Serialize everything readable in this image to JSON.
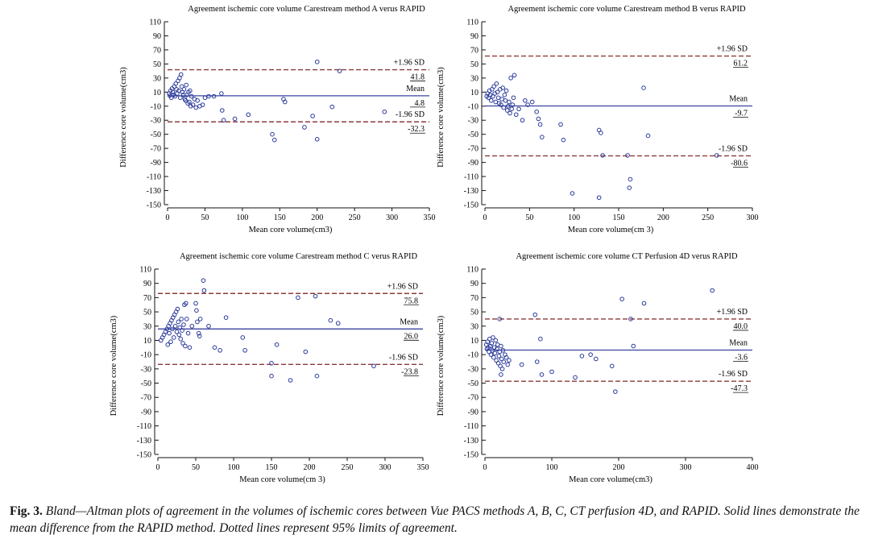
{
  "caption": {
    "label": "Fig. 3.",
    "text": "Bland—Altman plots of agreement in the volumes of ischemic cores between Vue PACS methods A, B, C, CT perfusion 4D, and RAPID. Solid lines demonstrate the mean difference from the RAPID method. Dotted lines represent 95% limits of agreement."
  },
  "colors": {
    "mean_line": "#3a44a0",
    "limit_line": "#8c3b3b",
    "points": "#2a3a9a",
    "axis": "#111111"
  },
  "chart_data": [
    {
      "type": "scatter",
      "title": "Agreement ischemic core volume Carestream method A verus RAPID",
      "xlabel": "Mean core volume(cm3)",
      "ylabel": "Difference core volume(cm3)",
      "xlim": [
        0,
        350
      ],
      "ylim": [
        -150,
        110
      ],
      "xticks": [
        0,
        50,
        100,
        150,
        200,
        250,
        300,
        350
      ],
      "yticks": [
        110,
        90,
        70,
        50,
        30,
        10,
        -10,
        -30,
        -50,
        -70,
        -90,
        -110,
        -130,
        -150
      ],
      "mean": 4.8,
      "upper_limit": 41.8,
      "lower_limit": -32.3,
      "labels": {
        "upper": "+1.96 SD",
        "mean": "Mean",
        "lower": "-1.96 SD",
        "upper_value": "41.8",
        "mean_value": "4.8",
        "lower_value": "-32.3"
      },
      "points": [
        [
          2,
          8
        ],
        [
          3,
          5
        ],
        [
          4,
          12
        ],
        [
          5,
          2
        ],
        [
          6,
          15
        ],
        [
          7,
          10
        ],
        [
          8,
          6
        ],
        [
          9,
          18
        ],
        [
          10,
          4
        ],
        [
          11,
          22
        ],
        [
          12,
          14
        ],
        [
          13,
          8
        ],
        [
          14,
          26
        ],
        [
          15,
          12
        ],
        [
          16,
          30
        ],
        [
          17,
          2
        ],
        [
          18,
          35
        ],
        [
          19,
          18
        ],
        [
          20,
          10
        ],
        [
          21,
          6
        ],
        [
          22,
          14
        ],
        [
          23,
          0
        ],
        [
          24,
          -2
        ],
        [
          25,
          20
        ],
        [
          26,
          6
        ],
        [
          27,
          -6
        ],
        [
          28,
          10
        ],
        [
          29,
          -4
        ],
        [
          30,
          12
        ],
        [
          31,
          -10
        ],
        [
          32,
          4
        ],
        [
          34,
          -8
        ],
        [
          36,
          0
        ],
        [
          38,
          -12
        ],
        [
          40,
          -2
        ],
        [
          43,
          -10
        ],
        [
          47,
          -8
        ],
        [
          50,
          2
        ],
        [
          55,
          4
        ],
        [
          62,
          4
        ],
        [
          72,
          8
        ],
        [
          73,
          -16
        ],
        [
          75,
          -30
        ],
        [
          90,
          -28
        ],
        [
          108,
          -22
        ],
        [
          140,
          -50
        ],
        [
          143,
          -58
        ],
        [
          155,
          0
        ],
        [
          157,
          -4
        ],
        [
          183,
          -40
        ],
        [
          200,
          53
        ],
        [
          200,
          -57
        ],
        [
          194,
          -24
        ],
        [
          230,
          40
        ],
        [
          220,
          -11
        ],
        [
          290,
          -18
        ]
      ]
    },
    {
      "type": "scatter",
      "title": "Agreement ischemic core volume Carestream method B verus RAPID",
      "xlabel": "Mean core volume(cm 3)",
      "ylabel": "Difference core volume(cm3)",
      "xlim": [
        0,
        300
      ],
      "ylim": [
        -150,
        110
      ],
      "xticks": [
        0,
        50,
        100,
        150,
        200,
        250,
        300
      ],
      "yticks": [
        110,
        90,
        70,
        50,
        30,
        10,
        -10,
        -30,
        -50,
        -70,
        -90,
        -110,
        -130,
        -150
      ],
      "mean": -9.7,
      "upper_limit": 61.2,
      "lower_limit": -80.6,
      "labels": {
        "upper": "+1.96 SD",
        "mean": "Mean",
        "lower": "-1.96 SD",
        "upper_value": "61.2",
        "mean_value": "-9.7",
        "lower_value": "-80.6"
      },
      "points": [
        [
          2,
          4
        ],
        [
          3,
          8
        ],
        [
          4,
          2
        ],
        [
          5,
          12
        ],
        [
          6,
          6
        ],
        [
          7,
          -2
        ],
        [
          8,
          14
        ],
        [
          9,
          4
        ],
        [
          10,
          18
        ],
        [
          11,
          8
        ],
        [
          12,
          -4
        ],
        [
          13,
          22
        ],
        [
          14,
          10
        ],
        [
          15,
          2
        ],
        [
          16,
          -6
        ],
        [
          17,
          14
        ],
        [
          18,
          -8
        ],
        [
          19,
          0
        ],
        [
          20,
          16
        ],
        [
          21,
          -12
        ],
        [
          22,
          6
        ],
        [
          23,
          -2
        ],
        [
          24,
          12
        ],
        [
          25,
          -16
        ],
        [
          26,
          -10
        ],
        [
          27,
          -4
        ],
        [
          28,
          -20
        ],
        [
          29,
          30
        ],
        [
          30,
          -14
        ],
        [
          31,
          -8
        ],
        [
          32,
          2
        ],
        [
          33,
          34
        ],
        [
          35,
          -22
        ],
        [
          38,
          -14
        ],
        [
          42,
          -30
        ],
        [
          45,
          -2
        ],
        [
          48,
          -8
        ],
        [
          53,
          -4
        ],
        [
          58,
          -18
        ],
        [
          60,
          -28
        ],
        [
          62,
          -36
        ],
        [
          64,
          -54
        ],
        [
          85,
          -36
        ],
        [
          88,
          -58
        ],
        [
          98,
          -134
        ],
        [
          128,
          -44
        ],
        [
          130,
          -48
        ],
        [
          132,
          -80
        ],
        [
          128,
          -140
        ],
        [
          160,
          -80
        ],
        [
          163,
          -114
        ],
        [
          162,
          -126
        ],
        [
          178,
          16
        ],
        [
          183,
          -52
        ],
        [
          260,
          -80
        ]
      ]
    },
    {
      "type": "scatter",
      "title": "Agreement ischemic core volume Carestream method C verus RAPID",
      "xlabel": "Mean core volume(cm 3)",
      "ylabel": "Difference core volume(cm3)",
      "xlim": [
        0,
        350
      ],
      "ylim": [
        -150,
        110
      ],
      "xticks": [
        0,
        50,
        100,
        150,
        200,
        250,
        300,
        350
      ],
      "yticks": [
        110,
        90,
        70,
        50,
        30,
        10,
        -10,
        -30,
        -50,
        -70,
        -90,
        -110,
        -130,
        -150
      ],
      "mean": 26.0,
      "upper_limit": 75.8,
      "lower_limit": -23.8,
      "labels": {
        "upper": "+1.96 SD",
        "mean": "Mean",
        "lower": "-1.96 SD",
        "upper_value": "75.8",
        "mean_value": "26.0",
        "lower_value": "-23.8"
      },
      "points": [
        [
          4,
          10
        ],
        [
          6,
          14
        ],
        [
          8,
          18
        ],
        [
          10,
          22
        ],
        [
          12,
          26
        ],
        [
          13,
          4
        ],
        [
          14,
          30
        ],
        [
          15,
          20
        ],
        [
          16,
          34
        ],
        [
          17,
          8
        ],
        [
          18,
          38
        ],
        [
          19,
          26
        ],
        [
          20,
          42
        ],
        [
          21,
          14
        ],
        [
          22,
          46
        ],
        [
          23,
          30
        ],
        [
          24,
          50
        ],
        [
          25,
          22
        ],
        [
          26,
          54
        ],
        [
          27,
          36
        ],
        [
          28,
          18
        ],
        [
          29,
          28
        ],
        [
          30,
          12
        ],
        [
          31,
          40
        ],
        [
          32,
          24
        ],
        [
          33,
          6
        ],
        [
          34,
          32
        ],
        [
          35,
          60
        ],
        [
          36,
          2
        ],
        [
          37,
          62
        ],
        [
          38,
          40
        ],
        [
          40,
          20
        ],
        [
          42,
          0
        ],
        [
          45,
          30
        ],
        [
          50,
          62
        ],
        [
          51,
          52
        ],
        [
          52,
          36
        ],
        [
          54,
          20
        ],
        [
          55,
          16
        ],
        [
          56,
          40
        ],
        [
          60,
          94
        ],
        [
          61,
          80
        ],
        [
          67,
          30
        ],
        [
          75,
          0
        ],
        [
          82,
          -4
        ],
        [
          90,
          42
        ],
        [
          112,
          14
        ],
        [
          115,
          -4
        ],
        [
          150,
          -40
        ],
        [
          157,
          4
        ],
        [
          150,
          -22
        ],
        [
          175,
          -46
        ],
        [
          185,
          70
        ],
        [
          195,
          -6
        ],
        [
          208,
          72
        ],
        [
          210,
          -40
        ],
        [
          228,
          38
        ],
        [
          238,
          34
        ],
        [
          285,
          -26
        ]
      ]
    },
    {
      "type": "scatter",
      "title": "Agreement ischemic core volume CT Perfusion 4D verus RAPID",
      "xlabel": "Mean core volume(cm3)",
      "ylabel": "Difference core volume(cm3)",
      "xlim": [
        0,
        400
      ],
      "ylim": [
        -150,
        110
      ],
      "xticks": [
        0,
        100,
        200,
        300,
        400
      ],
      "yticks": [
        110,
        90,
        70,
        50,
        30,
        10,
        -10,
        -30,
        -50,
        -70,
        -90,
        -110,
        -130,
        -150
      ],
      "mean": -3.6,
      "upper_limit": 40.0,
      "lower_limit": -47.3,
      "labels": {
        "upper": "+1.96 SD",
        "mean": "Mean",
        "lower": "-1.96 SD",
        "upper_value": "40.0",
        "mean_value": "-3.6",
        "lower_value": "-47.3"
      },
      "points": [
        [
          2,
          4
        ],
        [
          3,
          -2
        ],
        [
          4,
          8
        ],
        [
          5,
          0
        ],
        [
          6,
          -6
        ],
        [
          7,
          12
        ],
        [
          8,
          2
        ],
        [
          9,
          -10
        ],
        [
          10,
          6
        ],
        [
          11,
          -4
        ],
        [
          12,
          14
        ],
        [
          13,
          -14
        ],
        [
          14,
          0
        ],
        [
          15,
          -8
        ],
        [
          16,
          10
        ],
        [
          17,
          -18
        ],
        [
          18,
          -2
        ],
        [
          19,
          4
        ],
        [
          20,
          -22
        ],
        [
          21,
          -12
        ],
        [
          22,
          -6
        ],
        [
          23,
          -26
        ],
        [
          24,
          2
        ],
        [
          25,
          -16
        ],
        [
          26,
          -30
        ],
        [
          27,
          -4
        ],
        [
          28,
          -20
        ],
        [
          30,
          -10
        ],
        [
          32,
          -14
        ],
        [
          34,
          -24
        ],
        [
          22,
          40
        ],
        [
          24,
          -38
        ],
        [
          36,
          -18
        ],
        [
          55,
          -24
        ],
        [
          75,
          46
        ],
        [
          78,
          -20
        ],
        [
          83,
          12
        ],
        [
          85,
          -38
        ],
        [
          100,
          -34
        ],
        [
          135,
          -42
        ],
        [
          145,
          -12
        ],
        [
          158,
          -10
        ],
        [
          166,
          -16
        ],
        [
          190,
          -26
        ],
        [
          195,
          -62
        ],
        [
          205,
          68
        ],
        [
          218,
          40
        ],
        [
          222,
          2
        ],
        [
          238,
          62
        ],
        [
          340,
          80
        ]
      ]
    }
  ]
}
